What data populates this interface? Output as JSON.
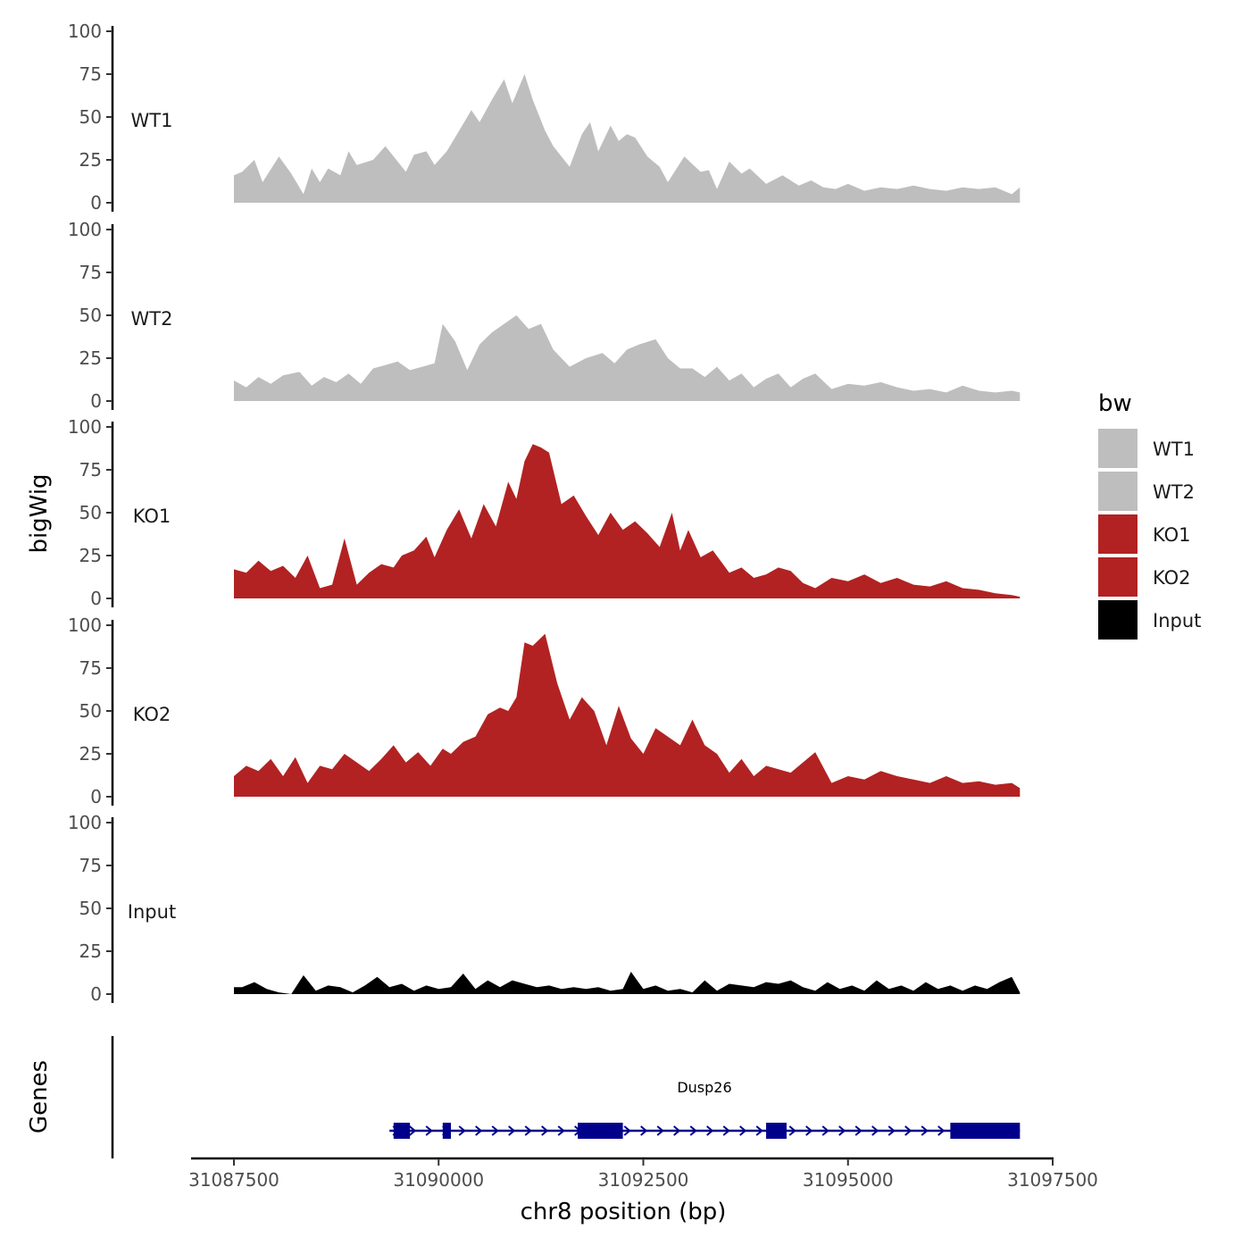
{
  "chart_data": {
    "type": "area",
    "title": "",
    "ylabel": "bigWig",
    "genes_label": "Genes",
    "xlabel": "chr8 position (bp)",
    "xlim": [
      31087000,
      31097500
    ],
    "ylim": [
      0,
      100
    ],
    "x_ticks": [
      31087500,
      31090000,
      31092500,
      31095000,
      31097500
    ],
    "x_tick_labels": [
      "31087500",
      "31090000",
      "31092500",
      "31095000",
      "31097500"
    ],
    "y_ticks": [
      0,
      25,
      50,
      75,
      100
    ],
    "y_tick_labels": [
      "0",
      "25",
      "50",
      "75",
      "100"
    ],
    "legend": {
      "title": "bw",
      "position": "right",
      "entries": [
        {
          "label": "WT1",
          "color": "#bebebe"
        },
        {
          "label": "WT2",
          "color": "#bebebe"
        },
        {
          "label": "KO1",
          "color": "#b22222"
        },
        {
          "label": "KO2",
          "color": "#b22222"
        },
        {
          "label": "Input",
          "color": "#000000"
        }
      ]
    },
    "series": [
      {
        "name": "WT1",
        "label": "WT1",
        "color": "#bebebe",
        "x": [
          31087500,
          31087600,
          31087750,
          31087850,
          31088050,
          31088200,
          31088350,
          31088450,
          31088550,
          31088650,
          31088800,
          31088900,
          31089000,
          31089200,
          31089350,
          31089500,
          31089600,
          31089700,
          31089850,
          31089950,
          31090100,
          31090250,
          31090400,
          31090500,
          31090650,
          31090800,
          31090900,
          31091050,
          31091150,
          31091300,
          31091400,
          31091600,
          31091750,
          31091850,
          31091950,
          31092100,
          31092200,
          31092300,
          31092400,
          31092550,
          31092700,
          31092800,
          31093000,
          31093200,
          31093300,
          31093400,
          31093550,
          31093700,
          31093800,
          31094000,
          31094200,
          31094400,
          31094550,
          31094700,
          31094850,
          31095000,
          31095200,
          31095400,
          31095600,
          31095800,
          31096000,
          31096200,
          31096400,
          31096600,
          31096800,
          31097000,
          31097100
        ],
        "values": [
          16,
          18,
          25,
          12,
          27,
          17,
          5,
          20,
          12,
          20,
          16,
          30,
          22,
          25,
          33,
          24,
          18,
          28,
          30,
          22,
          30,
          42,
          54,
          47,
          60,
          72,
          58,
          75,
          60,
          42,
          33,
          21,
          40,
          47,
          30,
          45,
          36,
          40,
          38,
          27,
          21,
          12,
          27,
          18,
          19,
          8,
          24,
          17,
          20,
          11,
          16,
          10,
          13,
          9,
          8,
          11,
          7,
          9,
          8,
          10,
          8,
          7,
          9,
          8,
          9,
          5,
          9
        ]
      },
      {
        "name": "WT2",
        "label": "WT2",
        "color": "#bebebe",
        "x": [
          31087500,
          31087650,
          31087800,
          31087950,
          31088100,
          31088300,
          31088450,
          31088600,
          31088750,
          31088900,
          31089050,
          31089200,
          31089350,
          31089500,
          31089650,
          31089800,
          31089950,
          31090050,
          31090200,
          31090350,
          31090500,
          31090650,
          31090800,
          31090950,
          31091100,
          31091250,
          31091400,
          31091600,
          31091800,
          31092000,
          31092150,
          31092300,
          31092450,
          31092650,
          31092800,
          31092950,
          31093100,
          31093250,
          31093400,
          31093550,
          31093700,
          31093850,
          31094000,
          31094150,
          31094300,
          31094450,
          31094600,
          31094800,
          31095000,
          31095200,
          31095400,
          31095600,
          31095800,
          31096000,
          31096200,
          31096400,
          31096600,
          31096800,
          31097000,
          31097100
        ],
        "values": [
          12,
          8,
          14,
          10,
          15,
          17,
          9,
          14,
          11,
          16,
          10,
          19,
          21,
          23,
          18,
          20,
          22,
          45,
          35,
          18,
          33,
          40,
          45,
          50,
          42,
          45,
          30,
          20,
          25,
          28,
          22,
          30,
          33,
          36,
          25,
          19,
          19,
          14,
          20,
          12,
          16,
          8,
          13,
          16,
          8,
          13,
          16,
          7,
          10,
          9,
          11,
          8,
          6,
          7,
          5,
          9,
          6,
          5,
          6,
          5
        ]
      },
      {
        "name": "KO1",
        "label": "KO1",
        "color": "#b22222",
        "x": [
          31087500,
          31087650,
          31087800,
          31087950,
          31088100,
          31088250,
          31088400,
          31088550,
          31088700,
          31088850,
          31089000,
          31089150,
          31089300,
          31089450,
          31089550,
          31089700,
          31089850,
          31089950,
          31090100,
          31090250,
          31090400,
          31090550,
          31090700,
          31090850,
          31090950,
          31091050,
          31091150,
          31091250,
          31091350,
          31091500,
          31091650,
          31091800,
          31091950,
          31092100,
          31092250,
          31092400,
          31092550,
          31092700,
          31092850,
          31092950,
          31093050,
          31093200,
          31093350,
          31093550,
          31093700,
          31093850,
          31094000,
          31094150,
          31094300,
          31094450,
          31094600,
          31094800,
          31095000,
          31095200,
          31095400,
          31095600,
          31095800,
          31096000,
          31096200,
          31096400,
          31096600,
          31096800,
          31097000,
          31097100
        ],
        "values": [
          17,
          15,
          22,
          16,
          19,
          12,
          25,
          6,
          8,
          35,
          8,
          15,
          20,
          18,
          25,
          28,
          36,
          24,
          40,
          52,
          35,
          55,
          42,
          68,
          58,
          80,
          90,
          88,
          85,
          55,
          60,
          48,
          37,
          50,
          40,
          45,
          38,
          30,
          50,
          28,
          40,
          24,
          28,
          15,
          18,
          12,
          14,
          18,
          16,
          9,
          6,
          12,
          10,
          14,
          9,
          12,
          8,
          7,
          10,
          6,
          5,
          3,
          2,
          1
        ]
      },
      {
        "name": "KO2",
        "label": "KO2",
        "color": "#b22222",
        "x": [
          31087500,
          31087650,
          31087800,
          31087950,
          31088100,
          31088250,
          31088400,
          31088550,
          31088700,
          31088850,
          31089000,
          31089150,
          31089300,
          31089450,
          31089600,
          31089750,
          31089900,
          31090050,
          31090150,
          31090300,
          31090450,
          31090600,
          31090750,
          31090850,
          31090950,
          31091050,
          31091150,
          31091300,
          31091450,
          31091600,
          31091750,
          31091900,
          31092050,
          31092200,
          31092350,
          31092500,
          31092650,
          31092800,
          31092950,
          31093100,
          31093250,
          31093400,
          31093550,
          31093700,
          31093850,
          31094000,
          31094150,
          31094300,
          31094450,
          31094600,
          31094800,
          31095000,
          31095200,
          31095400,
          31095600,
          31095800,
          31096000,
          31096200,
          31096400,
          31096600,
          31096800,
          31097000,
          31097100
        ],
        "values": [
          12,
          18,
          15,
          22,
          12,
          23,
          8,
          18,
          16,
          25,
          20,
          15,
          22,
          30,
          20,
          26,
          18,
          28,
          25,
          32,
          35,
          48,
          52,
          50,
          58,
          90,
          88,
          95,
          66,
          45,
          58,
          50,
          30,
          53,
          34,
          25,
          40,
          35,
          30,
          45,
          30,
          25,
          14,
          22,
          12,
          18,
          16,
          14,
          20,
          26,
          8,
          12,
          10,
          15,
          12,
          10,
          8,
          12,
          8,
          9,
          7,
          8,
          5
        ]
      },
      {
        "name": "Input",
        "label": "Input",
        "color": "#000000",
        "x": [
          31087500,
          31087600,
          31087750,
          31087900,
          31088050,
          31088200,
          31088350,
          31088500,
          31088650,
          31088800,
          31088950,
          31089100,
          31089250,
          31089400,
          31089550,
          31089700,
          31089850,
          31090000,
          31090150,
          31090300,
          31090450,
          31090600,
          31090750,
          31090900,
          31091050,
          31091200,
          31091350,
          31091500,
          31091650,
          31091800,
          31091950,
          31092100,
          31092250,
          31092350,
          31092500,
          31092650,
          31092800,
          31092950,
          31093100,
          31093250,
          31093400,
          31093550,
          31093700,
          31093850,
          31094000,
          31094150,
          31094300,
          31094450,
          31094600,
          31094750,
          31094900,
          31095050,
          31095200,
          31095350,
          31095500,
          31095650,
          31095800,
          31095950,
          31096100,
          31096250,
          31096400,
          31096550,
          31096700,
          31096850,
          31097000,
          31097100
        ],
        "values": [
          4,
          4,
          7,
          3,
          1,
          0,
          11,
          2,
          5,
          4,
          1,
          5,
          10,
          4,
          6,
          2,
          5,
          3,
          4,
          12,
          3,
          8,
          4,
          8,
          6,
          4,
          5,
          3,
          4,
          3,
          4,
          2,
          3,
          13,
          3,
          5,
          2,
          3,
          1,
          8,
          2,
          6,
          5,
          4,
          7,
          6,
          8,
          4,
          2,
          7,
          3,
          5,
          2,
          8,
          3,
          5,
          2,
          7,
          3,
          5,
          2,
          5,
          3,
          7,
          10,
          1
        ]
      }
    ],
    "genes": [
      {
        "name": "Dusp26",
        "color": "#00008b",
        "strand": "+",
        "start": 31089400,
        "end": 31097100,
        "exons": [
          {
            "start": 31089450,
            "end": 31089650
          },
          {
            "start": 31090050,
            "end": 31090150
          },
          {
            "start": 31091700,
            "end": 31092250
          },
          {
            "start": 31094000,
            "end": 31094250
          },
          {
            "start": 31096250,
            "end": 31097100
          }
        ]
      }
    ]
  }
}
